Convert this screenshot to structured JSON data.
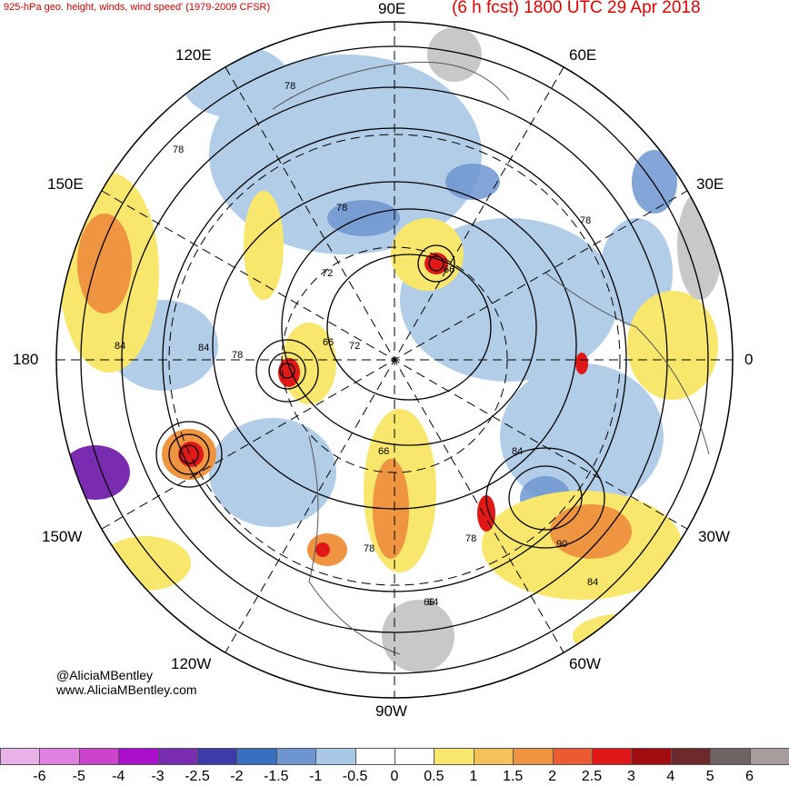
{
  "header": {
    "left_title": "925-hPa geo. height, winds, wind speed' (1979-2009 CFSR)",
    "right_title": "(6 h fcst) 1800 UTC 29 Apr 2018"
  },
  "longitude_labels": {
    "e90": "90E",
    "e60": "60E",
    "e30": "30E",
    "zero": "0",
    "w30": "30W",
    "w60": "60W",
    "w90": "90W",
    "w120": "120W",
    "w150": "150W",
    "dateline": "180",
    "e150": "150E",
    "e120": "120E"
  },
  "contour_labels": [
    "78",
    "78",
    "78",
    "78",
    "72",
    "66",
    "72",
    "84",
    "84",
    "78",
    "66",
    "66",
    "84",
    "78",
    "90",
    "84",
    "66",
    "64",
    "78"
  ],
  "credit": {
    "handle": "@AliciaMBentley",
    "site": "www.AliciaMBentley.com"
  },
  "colorbar": {
    "labels": [
      "-6",
      "-5",
      "-4",
      "-3",
      "-2.5",
      "-2",
      "-1.5",
      "-1",
      "-0.5",
      "0",
      "0.5",
      "1",
      "1.5",
      "2",
      "2.5",
      "3",
      "4",
      "5",
      "6"
    ],
    "colors": [
      "#e8b2e8",
      "#e080e0",
      "#cc44cc",
      "#aa10cc",
      "#7a2cb0",
      "#3c3ca8",
      "#3a6ebf",
      "#6f95d0",
      "#a9c8e6",
      "#ffffff",
      "#ffffff",
      "#f8e76c",
      "#f4c25a",
      "#ef9440",
      "#eb5a32",
      "#e01818",
      "#a00c10",
      "#6e2a2a",
      "#6e6464",
      "#a89c9c"
    ]
  }
}
